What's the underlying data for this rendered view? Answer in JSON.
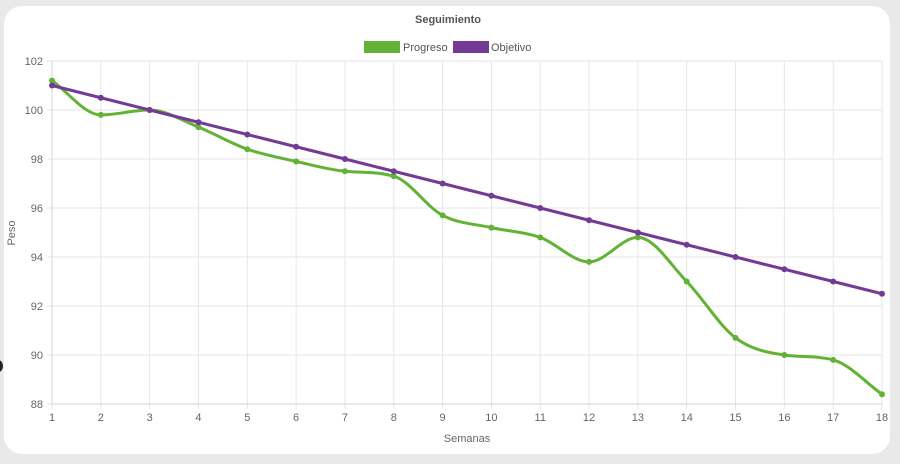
{
  "chart_data": {
    "type": "line",
    "title": "Seguimiento",
    "xlabel": "Semanas",
    "ylabel": "Peso",
    "x": [
      1,
      2,
      3,
      4,
      5,
      6,
      7,
      8,
      9,
      10,
      11,
      12,
      13,
      14,
      15,
      16,
      17,
      18
    ],
    "ylim": [
      88,
      102
    ],
    "yticks": [
      88,
      90,
      92,
      94,
      96,
      98,
      100,
      102
    ],
    "grid": true,
    "legend_position": "top",
    "series": [
      {
        "name": "Progreso",
        "color": "#62b236",
        "values": [
          101.2,
          99.8,
          100.0,
          99.3,
          98.4,
          97.9,
          97.5,
          97.3,
          95.7,
          95.2,
          94.8,
          93.8,
          94.8,
          93.0,
          90.7,
          90.0,
          89.8,
          88.4
        ]
      },
      {
        "name": "Objetivo",
        "color": "#733a96",
        "values": [
          101.0,
          100.5,
          100.0,
          99.5,
          99.0,
          98.5,
          98.0,
          97.5,
          97.0,
          96.5,
          96.0,
          95.5,
          95.0,
          94.5,
          94.0,
          93.5,
          93.0,
          92.5
        ]
      }
    ]
  }
}
